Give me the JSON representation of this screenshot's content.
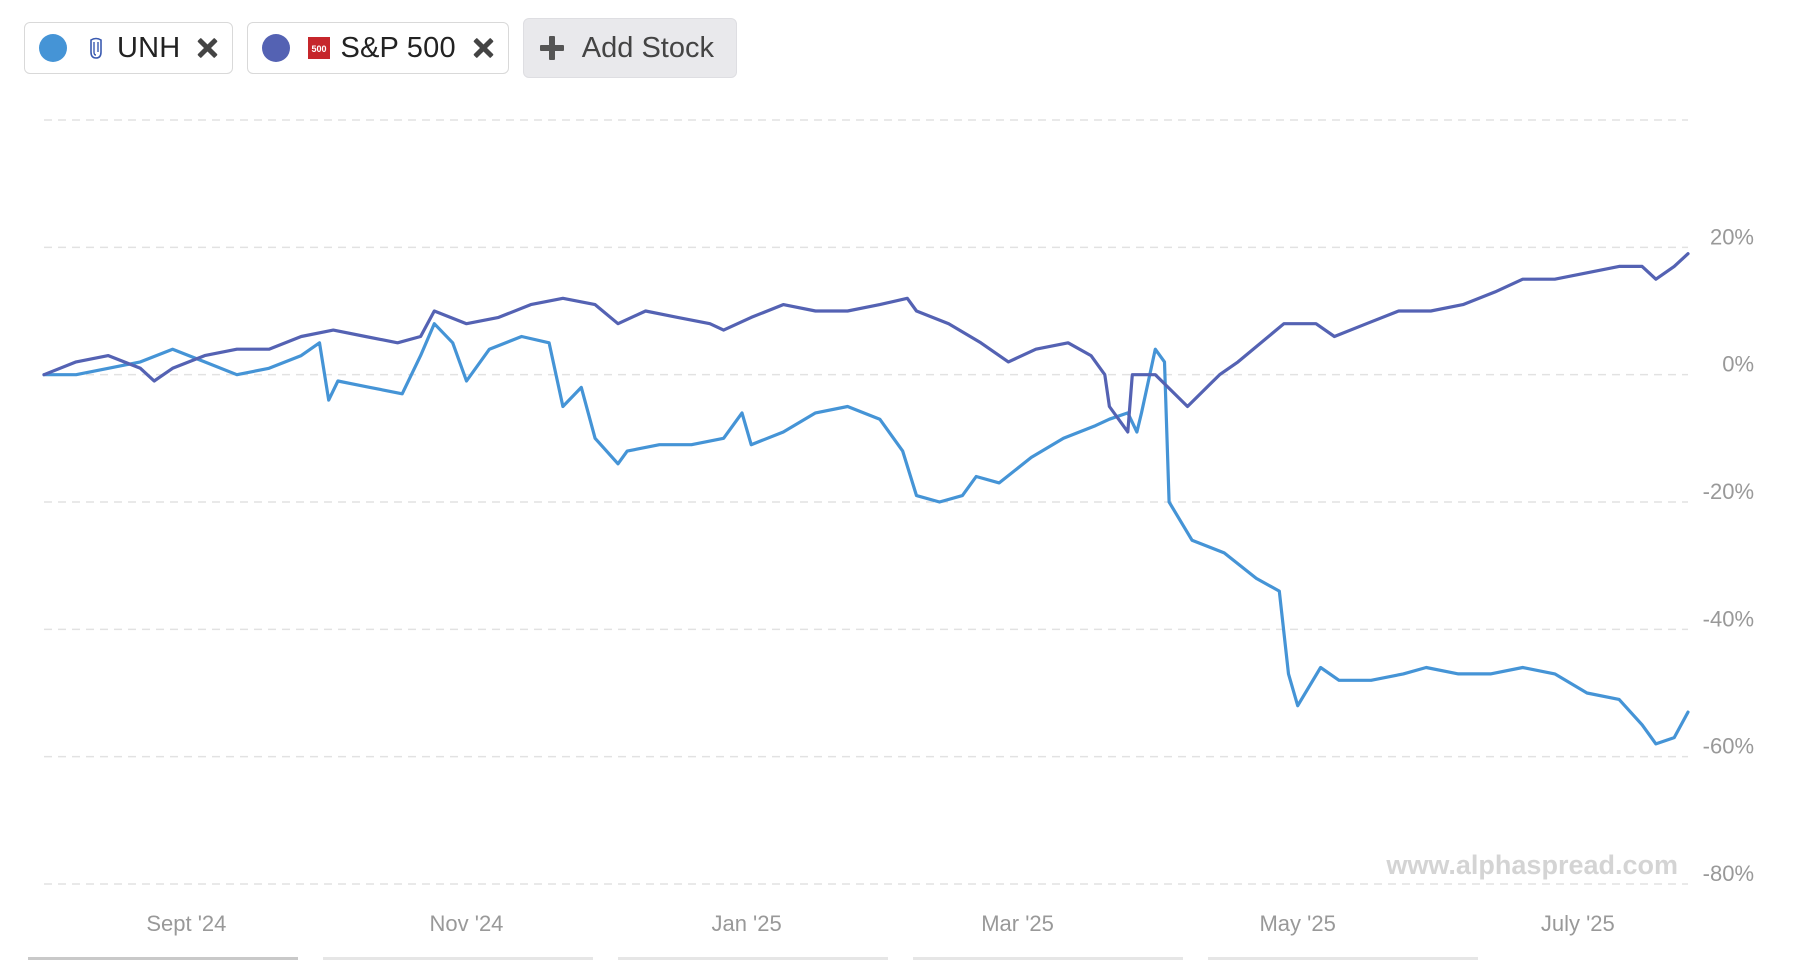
{
  "legend": {
    "series": [
      {
        "label": "UNH",
        "color": "#4594d6",
        "logo": "unh-logo-icon"
      },
      {
        "label": "S&P 500",
        "color": "#5462b3",
        "logo": "sp500-logo-icon",
        "badge_text": "500",
        "badge_color": "#c6262b"
      }
    ],
    "add_label": "Add Stock"
  },
  "watermark": "www.alphaspread.com",
  "chart_data": {
    "type": "line",
    "xlabel": "",
    "ylabel": "",
    "x_start": "2024-08-15",
    "x_end": "2025-08-08",
    "x_ticks": [
      "Sept '24",
      "Nov '24",
      "Jan '25",
      "Mar '25",
      "May '25",
      "July '25"
    ],
    "x_tick_dates": [
      "2024-09-15",
      "2024-11-15",
      "2025-01-15",
      "2025-03-15",
      "2025-05-15",
      "2025-07-15"
    ],
    "y_ticks": [
      20,
      0,
      -20,
      -40,
      -60,
      -80
    ],
    "y_tick_labels": [
      "20%",
      "0%",
      "-20%",
      "-40%",
      "-60%",
      "-80%"
    ],
    "ylim": [
      -80,
      40
    ],
    "grid": true,
    "series": [
      {
        "name": "UNH",
        "color": "#4594d6",
        "points": [
          [
            "2024-08-15",
            0
          ],
          [
            "2024-08-22",
            0
          ],
          [
            "2024-08-29",
            1
          ],
          [
            "2024-09-05",
            2
          ],
          [
            "2024-09-12",
            4
          ],
          [
            "2024-09-19",
            2
          ],
          [
            "2024-09-26",
            0
          ],
          [
            "2024-10-03",
            1
          ],
          [
            "2024-10-10",
            3
          ],
          [
            "2024-10-14",
            5
          ],
          [
            "2024-10-16",
            -4
          ],
          [
            "2024-10-18",
            -1
          ],
          [
            "2024-10-25",
            -2
          ],
          [
            "2024-11-01",
            -3
          ],
          [
            "2024-11-05",
            3
          ],
          [
            "2024-11-08",
            8
          ],
          [
            "2024-11-12",
            5
          ],
          [
            "2024-11-15",
            -1
          ],
          [
            "2024-11-20",
            4
          ],
          [
            "2024-11-27",
            6
          ],
          [
            "2024-12-03",
            5
          ],
          [
            "2024-12-06",
            -5
          ],
          [
            "2024-12-10",
            -2
          ],
          [
            "2024-12-13",
            -10
          ],
          [
            "2024-12-18",
            -14
          ],
          [
            "2024-12-20",
            -12
          ],
          [
            "2024-12-27",
            -11
          ],
          [
            "2025-01-03",
            -11
          ],
          [
            "2025-01-10",
            -10
          ],
          [
            "2025-01-14",
            -6
          ],
          [
            "2025-01-16",
            -11
          ],
          [
            "2025-01-23",
            -9
          ],
          [
            "2025-01-30",
            -6
          ],
          [
            "2025-02-06",
            -5
          ],
          [
            "2025-02-13",
            -7
          ],
          [
            "2025-02-18",
            -12
          ],
          [
            "2025-02-21",
            -19
          ],
          [
            "2025-02-26",
            -20
          ],
          [
            "2025-03-03",
            -19
          ],
          [
            "2025-03-06",
            -16
          ],
          [
            "2025-03-11",
            -17
          ],
          [
            "2025-03-18",
            -13
          ],
          [
            "2025-03-25",
            -10
          ],
          [
            "2025-04-01",
            -8
          ],
          [
            "2025-04-04",
            -7
          ],
          [
            "2025-04-08",
            -6
          ],
          [
            "2025-04-10",
            -9
          ],
          [
            "2025-04-11",
            -6
          ],
          [
            "2025-04-14",
            4
          ],
          [
            "2025-04-16",
            2
          ],
          [
            "2025-04-17",
            -20
          ],
          [
            "2025-04-22",
            -26
          ],
          [
            "2025-04-29",
            -28
          ],
          [
            "2025-05-06",
            -32
          ],
          [
            "2025-05-11",
            -34
          ],
          [
            "2025-05-13",
            -47
          ],
          [
            "2025-05-15",
            -52
          ],
          [
            "2025-05-20",
            -46
          ],
          [
            "2025-05-24",
            -48
          ],
          [
            "2025-05-31",
            -48
          ],
          [
            "2025-06-07",
            -47
          ],
          [
            "2025-06-12",
            -46
          ],
          [
            "2025-06-19",
            -47
          ],
          [
            "2025-06-26",
            -47
          ],
          [
            "2025-07-03",
            -46
          ],
          [
            "2025-07-10",
            -47
          ],
          [
            "2025-07-17",
            -50
          ],
          [
            "2025-07-24",
            -51
          ],
          [
            "2025-07-29",
            -55
          ],
          [
            "2025-08-01",
            -58
          ],
          [
            "2025-08-05",
            -57
          ],
          [
            "2025-08-08",
            -53
          ]
        ]
      },
      {
        "name": "S&P 500",
        "color": "#5462b3",
        "points": [
          [
            "2024-08-15",
            0
          ],
          [
            "2024-08-22",
            2
          ],
          [
            "2024-08-29",
            3
          ],
          [
            "2024-09-05",
            1
          ],
          [
            "2024-09-08",
            -1
          ],
          [
            "2024-09-12",
            1
          ],
          [
            "2024-09-19",
            3
          ],
          [
            "2024-09-26",
            4
          ],
          [
            "2024-10-03",
            4
          ],
          [
            "2024-10-10",
            6
          ],
          [
            "2024-10-17",
            7
          ],
          [
            "2024-10-24",
            6
          ],
          [
            "2024-10-31",
            5
          ],
          [
            "2024-11-05",
            6
          ],
          [
            "2024-11-08",
            10
          ],
          [
            "2024-11-15",
            8
          ],
          [
            "2024-11-22",
            9
          ],
          [
            "2024-11-29",
            11
          ],
          [
            "2024-12-06",
            12
          ],
          [
            "2024-12-13",
            11
          ],
          [
            "2024-12-18",
            8
          ],
          [
            "2024-12-24",
            10
          ],
          [
            "2024-12-31",
            9
          ],
          [
            "2025-01-07",
            8
          ],
          [
            "2025-01-10",
            7
          ],
          [
            "2025-01-16",
            9
          ],
          [
            "2025-01-23",
            11
          ],
          [
            "2025-01-30",
            10
          ],
          [
            "2025-02-06",
            10
          ],
          [
            "2025-02-13",
            11
          ],
          [
            "2025-02-19",
            12
          ],
          [
            "2025-02-21",
            10
          ],
          [
            "2025-02-28",
            8
          ],
          [
            "2025-03-07",
            5
          ],
          [
            "2025-03-13",
            2
          ],
          [
            "2025-03-19",
            4
          ],
          [
            "2025-03-26",
            5
          ],
          [
            "2025-03-31",
            3
          ],
          [
            "2025-04-03",
            0
          ],
          [
            "2025-04-04",
            -5
          ],
          [
            "2025-04-07",
            -8
          ],
          [
            "2025-04-08",
            -9
          ],
          [
            "2025-04-09",
            0
          ],
          [
            "2025-04-14",
            0
          ],
          [
            "2025-04-21",
            -5
          ],
          [
            "2025-04-28",
            0
          ],
          [
            "2025-05-02",
            2
          ],
          [
            "2025-05-12",
            8
          ],
          [
            "2025-05-19",
            8
          ],
          [
            "2025-05-23",
            6
          ],
          [
            "2025-05-30",
            8
          ],
          [
            "2025-06-06",
            10
          ],
          [
            "2025-06-13",
            10
          ],
          [
            "2025-06-20",
            11
          ],
          [
            "2025-06-27",
            13
          ],
          [
            "2025-07-03",
            15
          ],
          [
            "2025-07-10",
            15
          ],
          [
            "2025-07-17",
            16
          ],
          [
            "2025-07-24",
            17
          ],
          [
            "2025-07-29",
            17
          ],
          [
            "2025-08-01",
            15
          ],
          [
            "2025-08-05",
            17
          ],
          [
            "2025-08-08",
            19
          ]
        ]
      }
    ]
  }
}
